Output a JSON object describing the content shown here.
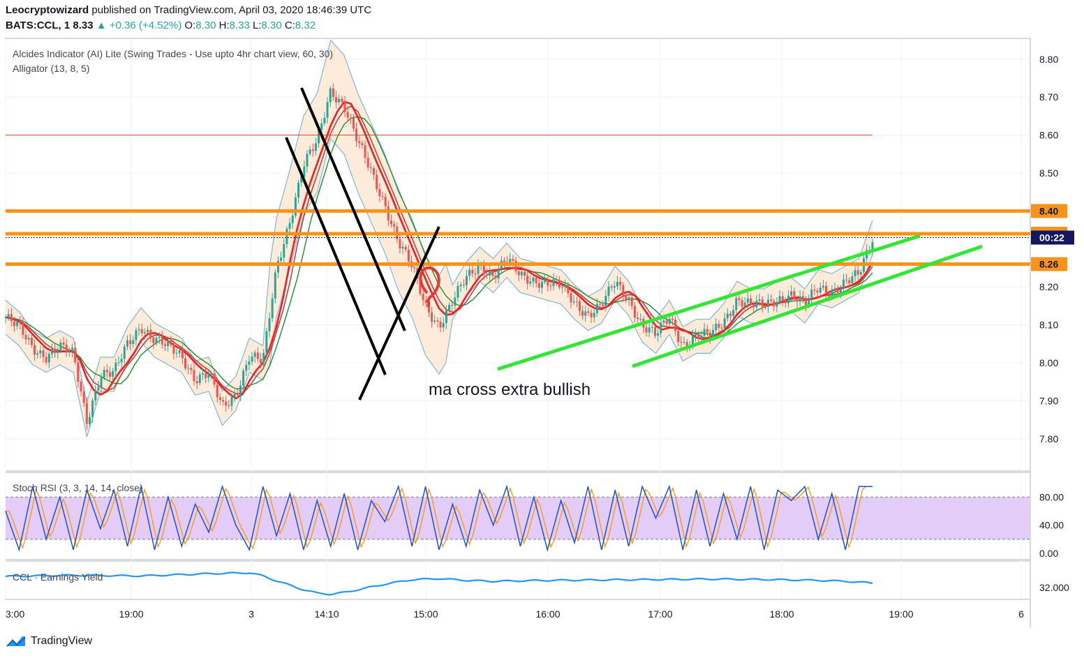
{
  "header": {
    "publisher": "Leocryptowizard",
    "published_text": "published on TradingView.com, April 03, 2020 18:46:39 UTC",
    "symbol": "BATS:CCL, 1",
    "last": "8.33",
    "change": "+0.36 (+4.52%)",
    "o_label": "O:",
    "o": "8.30",
    "h_label": "H:",
    "h": "8.33",
    "l_label": "L:",
    "l": "8.30",
    "c_label": "C:",
    "c": "8.32"
  },
  "indicators": {
    "alcides": "Alcides Indicator (AI) Lite (Swing Trades - Use upto 4hr chart view, 60, 30)",
    "alligator": "Alligator (13, 8, 5)",
    "stoch": "Stoch RSI (3, 3, 14, 14, close)",
    "earnings": "CCL · Earnings Yield"
  },
  "annotation": "ma cross extra bullish",
  "brand": "TradingView",
  "colors": {
    "orange_level": "#f7931a",
    "red_level": "#e53935",
    "green_channel": "#33e633",
    "price_tag_dark": "#131760",
    "bb_fill": "#fde4cc",
    "bb_line": "#7eb6d9",
    "stoch_fill": "#e3ccf7",
    "stoch_k": "#1e4fd6",
    "stoch_d": "#ff9800",
    "earnings_line": "#2196f3",
    "candle_up": "#26a69a",
    "candle_down": "#ef5350"
  },
  "chart_data": {
    "type": "candlestick",
    "price_axis": {
      "ticks": [
        "8.80",
        "8.70",
        "8.60",
        "8.50",
        "8.20",
        "8.10",
        "8.00",
        "7.90",
        "7.80"
      ],
      "tagged_levels": [
        {
          "label": "8.40",
          "value": 8.4,
          "style": "orange"
        },
        {
          "label": "8.34",
          "value": 8.34,
          "style": "orange"
        },
        {
          "label": "00:22",
          "value": 8.33,
          "style": "dark"
        },
        {
          "label": "8.26",
          "value": 8.26,
          "style": "orange"
        }
      ],
      "red_level": 8.6
    },
    "time_axis": [
      "3:00",
      "19:00",
      "3",
      "14:10",
      "15:00",
      "16:00",
      "17:00",
      "18:00",
      "19:00",
      "6"
    ],
    "stoch_axis": [
      "80.00",
      "40.00",
      "0.00"
    ],
    "stoch_bands": [
      80,
      20
    ],
    "earnings_axis": [
      "32.000"
    ],
    "price_path": [
      [
        0,
        8.12
      ],
      [
        1,
        8.09
      ],
      [
        2,
        8.04
      ],
      [
        3,
        8.02
      ],
      [
        4,
        8.04
      ],
      [
        5,
        8.02
      ],
      [
        6,
        7.85
      ],
      [
        7,
        7.97
      ],
      [
        8,
        7.97
      ],
      [
        9,
        8.05
      ],
      [
        10,
        8.1
      ],
      [
        11,
        8.06
      ],
      [
        12,
        8.04
      ],
      [
        13,
        8.02
      ],
      [
        14,
        7.96
      ],
      [
        15,
        7.97
      ],
      [
        16,
        7.88
      ],
      [
        17,
        7.92
      ],
      [
        18,
        8.02
      ],
      [
        19,
        8.0
      ],
      [
        20,
        8.25
      ],
      [
        21,
        8.38
      ],
      [
        22,
        8.52
      ],
      [
        23,
        8.58
      ],
      [
        24,
        8.72
      ],
      [
        25,
        8.68
      ],
      [
        26,
        8.58
      ],
      [
        27,
        8.5
      ],
      [
        28,
        8.42
      ],
      [
        29,
        8.32
      ],
      [
        30,
        8.25
      ],
      [
        31,
        8.15
      ],
      [
        32,
        8.1
      ],
      [
        33,
        8.16
      ],
      [
        34,
        8.22
      ],
      [
        35,
        8.26
      ],
      [
        36,
        8.23
      ],
      [
        37,
        8.27
      ],
      [
        38,
        8.23
      ],
      [
        39,
        8.22
      ],
      [
        40,
        8.21
      ],
      [
        41,
        8.2
      ],
      [
        42,
        8.16
      ],
      [
        43,
        8.13
      ],
      [
        44,
        8.15
      ],
      [
        45,
        8.21
      ],
      [
        46,
        8.17
      ],
      [
        47,
        8.1
      ],
      [
        48,
        8.07
      ],
      [
        49,
        8.12
      ],
      [
        50,
        8.05
      ],
      [
        51,
        8.07
      ],
      [
        52,
        8.07
      ],
      [
        53,
        8.11
      ],
      [
        54,
        8.17
      ],
      [
        55,
        8.15
      ],
      [
        56,
        8.15
      ],
      [
        57,
        8.17
      ],
      [
        58,
        8.18
      ],
      [
        59,
        8.15
      ],
      [
        60,
        8.2
      ],
      [
        61,
        8.19
      ],
      [
        62,
        8.21
      ],
      [
        63,
        8.23
      ],
      [
        64,
        8.33
      ]
    ],
    "stoch_path": [
      [
        0,
        60
      ],
      [
        1,
        5
      ],
      [
        2,
        95
      ],
      [
        3,
        20
      ],
      [
        4,
        80
      ],
      [
        5,
        5
      ],
      [
        6,
        90
      ],
      [
        7,
        35
      ],
      [
        8,
        90
      ],
      [
        9,
        10
      ],
      [
        10,
        95
      ],
      [
        11,
        5
      ],
      [
        12,
        80
      ],
      [
        13,
        10
      ],
      [
        14,
        70
      ],
      [
        15,
        30
      ],
      [
        16,
        95
      ],
      [
        17,
        40
      ],
      [
        18,
        5
      ],
      [
        19,
        95
      ],
      [
        20,
        25
      ],
      [
        21,
        85
      ],
      [
        22,
        5
      ],
      [
        23,
        75
      ],
      [
        24,
        10
      ],
      [
        25,
        85
      ],
      [
        26,
        5
      ],
      [
        27,
        75
      ],
      [
        28,
        45
      ],
      [
        29,
        95
      ],
      [
        30,
        10
      ],
      [
        31,
        95
      ],
      [
        32,
        5
      ],
      [
        33,
        70
      ],
      [
        34,
        10
      ],
      [
        35,
        90
      ],
      [
        36,
        40
      ],
      [
        37,
        95
      ],
      [
        38,
        10
      ],
      [
        39,
        80
      ],
      [
        40,
        5
      ],
      [
        41,
        75
      ],
      [
        42,
        15
      ],
      [
        43,
        95
      ],
      [
        44,
        5
      ],
      [
        45,
        90
      ],
      [
        46,
        10
      ],
      [
        47,
        95
      ],
      [
        48,
        50
      ],
      [
        49,
        95
      ],
      [
        50,
        5
      ],
      [
        51,
        90
      ],
      [
        52,
        10
      ],
      [
        53,
        85
      ],
      [
        54,
        20
      ],
      [
        55,
        95
      ],
      [
        56,
        5
      ],
      [
        57,
        90
      ],
      [
        58,
        75
      ],
      [
        59,
        95
      ],
      [
        60,
        20
      ],
      [
        61,
        85
      ],
      [
        62,
        5
      ],
      [
        63,
        95
      ],
      [
        64,
        95
      ]
    ],
    "earnings_path": [
      [
        0,
        37.0
      ],
      [
        5,
        37.5
      ],
      [
        10,
        37.2
      ],
      [
        15,
        38.2
      ],
      [
        18,
        38.6
      ],
      [
        19,
        37.2
      ],
      [
        20,
        35.0
      ],
      [
        21,
        33.0
      ],
      [
        22,
        31.0
      ],
      [
        23,
        29.5
      ],
      [
        24,
        29.0
      ],
      [
        25,
        29.8
      ],
      [
        26,
        31.0
      ],
      [
        28,
        33.5
      ],
      [
        30,
        35.5
      ],
      [
        32,
        36.0
      ],
      [
        34,
        35.2
      ],
      [
        36,
        34.8
      ],
      [
        38,
        35.0
      ],
      [
        40,
        35.2
      ],
      [
        44,
        35.4
      ],
      [
        48,
        35.6
      ],
      [
        52,
        35.8
      ],
      [
        56,
        35.6
      ],
      [
        58,
        35.4
      ],
      [
        60,
        35.2
      ],
      [
        62,
        34.8
      ],
      [
        64,
        34.0
      ]
    ]
  }
}
